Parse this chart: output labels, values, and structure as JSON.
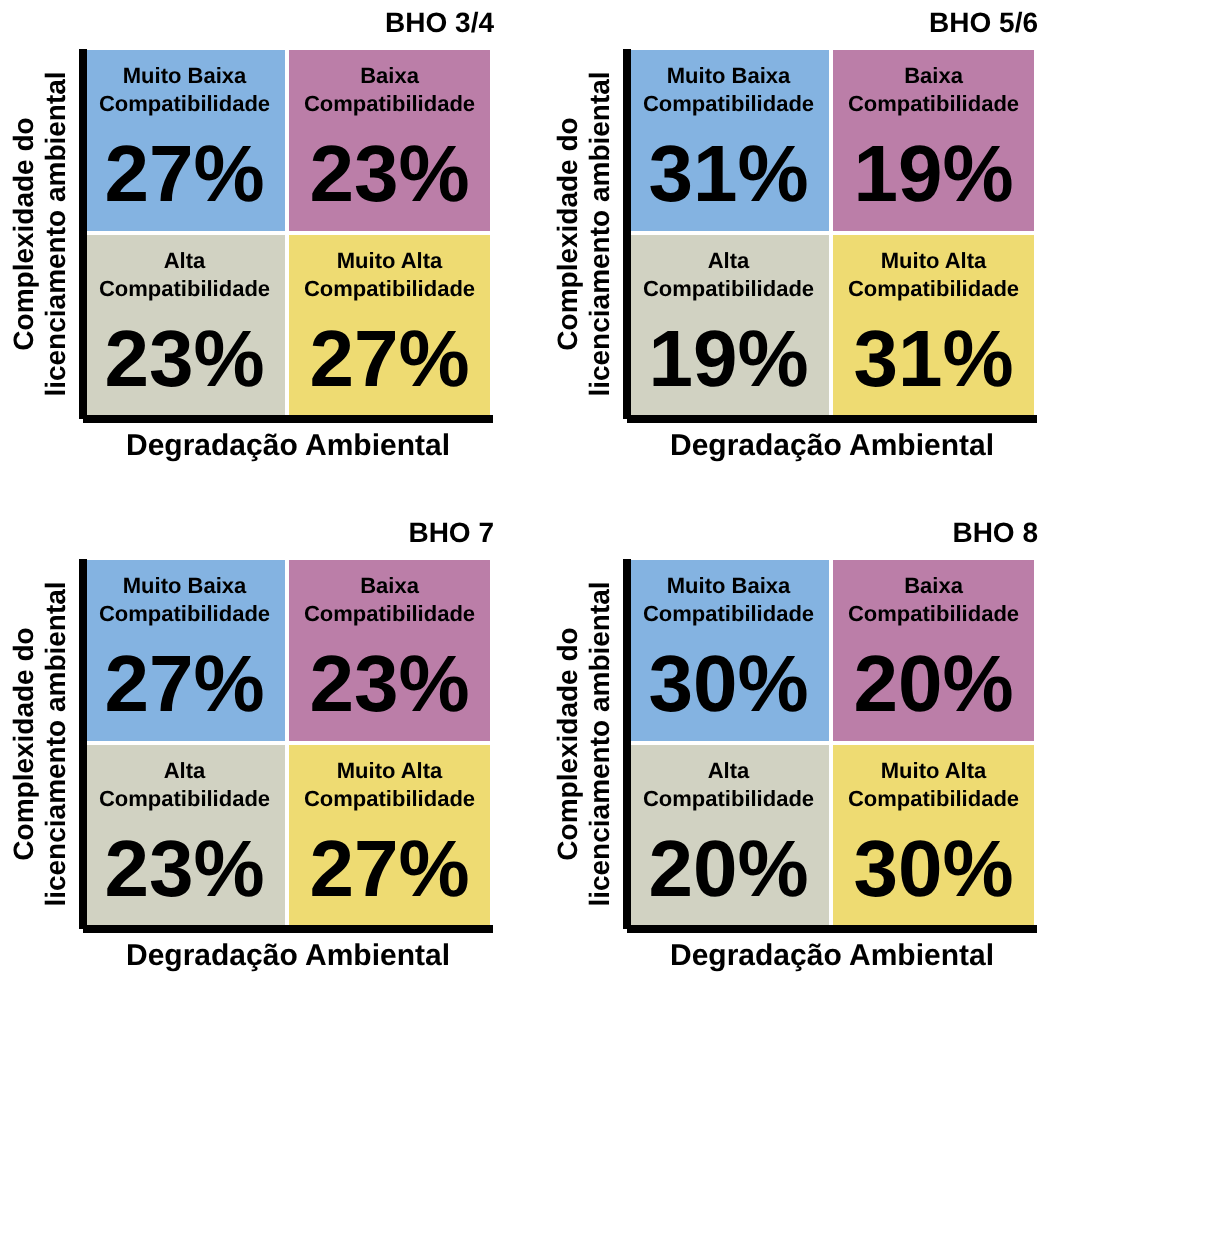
{
  "chart_data": [
    {
      "type": "other",
      "title": "BHO 3/4",
      "xlabel": "Degradação Ambiental",
      "ylabel": "Complexidade do\nlicenciamento ambiental",
      "categories": [
        "Muito Baixa Compatibilidade",
        "Baixa Compatibilidade",
        "Alta Compatibilidade",
        "Muito Alta Compatibilidade"
      ],
      "values": [
        27,
        23,
        23,
        27
      ],
      "value_labels": [
        "27%",
        "23%",
        "23%",
        "27%"
      ],
      "colors": [
        "#6fa6dc",
        "#b0689a",
        "#c9cbb8",
        "#ecd55a"
      ]
    },
    {
      "type": "other",
      "title": "BHO 5/6",
      "xlabel": "Degradação Ambiental",
      "ylabel": "Complexidade do\nlicenciamento ambiental",
      "categories": [
        "Muito Baixa Compatibilidade",
        "Baixa Compatibilidade",
        "Alta Compatibilidade",
        "Muito Alta Compatibilidade"
      ],
      "values": [
        31,
        19,
        19,
        31
      ],
      "value_labels": [
        "31%",
        "19%",
        "19%",
        "31%"
      ],
      "colors": [
        "#6fa6dc",
        "#b0689a",
        "#c9cbb8",
        "#ecd55a"
      ]
    },
    {
      "type": "other",
      "title": "BHO 7",
      "xlabel": "Degradação Ambiental",
      "ylabel": "Complexidade do\nlicenciamento ambiental",
      "categories": [
        "Muito Baixa Compatibilidade",
        "Baixa Compatibilidade",
        "Alta Compatibilidade",
        "Muito Alta Compatibilidade"
      ],
      "values": [
        27,
        23,
        23,
        27
      ],
      "value_labels": [
        "27%",
        "23%",
        "23%",
        "27%"
      ],
      "colors": [
        "#6fa6dc",
        "#b0689a",
        "#c9cbb8",
        "#ecd55a"
      ]
    },
    {
      "type": "other",
      "title": "BHO 8",
      "xlabel": "Degradação Ambiental",
      "ylabel": "Complexidade do\nlicenciamento ambiental",
      "categories": [
        "Muito Baixa Compatibilidade",
        "Baixa Compatibilidade",
        "Alta Compatibilidade",
        "Muito Alta Compatibilidade"
      ],
      "values": [
        30,
        20,
        20,
        30
      ],
      "value_labels": [
        "30%",
        "20%",
        "20%",
        "30%"
      ],
      "colors": [
        "#6fa6dc",
        "#b0689a",
        "#c9cbb8",
        "#ecd55a"
      ]
    }
  ]
}
